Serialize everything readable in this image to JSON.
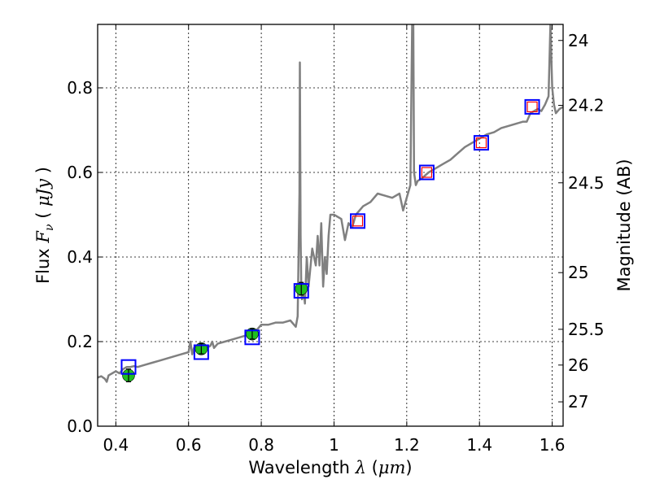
{
  "chart_data": {
    "type": "line",
    "xlabel": "Wavelength",
    "xlabel_symbol": "λ",
    "xlabel_unit_open": "(",
    "xlabel_unit": "μm",
    "xlabel_unit_close": ")",
    "ylabel_left_prefix": "Flux",
    "ylabel_left_symbol": "F",
    "ylabel_left_subscript": "ν",
    "ylabel_left_unit_open": "(",
    "ylabel_left_unit": "μJy",
    "ylabel_left_unit_close": ")",
    "ylabel_right": "Magnitude (AB)",
    "xlim": [
      0.35,
      1.63
    ],
    "ylim": [
      0.0,
      0.95
    ],
    "grid": true,
    "x_ticks": [
      0.4,
      0.6,
      0.8,
      1.0,
      1.2,
      1.4,
      1.6
    ],
    "x_tick_labels": [
      "0.4",
      "0.6",
      "0.8",
      "1",
      "1.2",
      "1.4",
      "1.6"
    ],
    "y_ticks": [
      0.0,
      0.2,
      0.4,
      0.6,
      0.8
    ],
    "y_tick_labels": [
      "0.0",
      "0.2",
      "0.4",
      "0.6",
      "0.8"
    ],
    "mag_ticks": [
      24,
      24.2,
      24.5,
      25,
      25.5,
      26,
      27
    ],
    "mag_tick_labels": [
      "24",
      "24.2",
      "24.5",
      "25",
      "25.5",
      "26",
      "27"
    ],
    "model_color": "#808080",
    "model_spectrum": {
      "x": [
        0.35,
        0.36,
        0.37,
        0.375,
        0.38,
        0.39,
        0.4,
        0.41,
        0.42,
        0.43,
        0.44,
        0.45,
        0.46,
        0.48,
        0.5,
        0.52,
        0.54,
        0.56,
        0.58,
        0.6,
        0.605,
        0.61,
        0.615,
        0.62,
        0.63,
        0.65,
        0.66,
        0.665,
        0.67,
        0.68,
        0.7,
        0.72,
        0.74,
        0.76,
        0.78,
        0.79,
        0.8,
        0.82,
        0.84,
        0.86,
        0.88,
        0.895,
        0.9,
        0.905,
        0.906,
        0.908,
        0.91,
        0.912,
        0.915,
        0.92,
        0.925,
        0.93,
        0.94,
        0.95,
        0.955,
        0.96,
        0.965,
        0.97,
        0.975,
        0.98,
        0.985,
        0.99,
        1.0,
        1.02,
        1.03,
        1.04,
        1.05,
        1.06,
        1.08,
        1.1,
        1.12,
        1.14,
        1.16,
        1.18,
        1.19,
        1.2,
        1.21,
        1.215,
        1.218,
        1.22,
        1.225,
        1.23,
        1.24,
        1.26,
        1.28,
        1.3,
        1.32,
        1.34,
        1.36,
        1.38,
        1.4,
        1.42,
        1.44,
        1.46,
        1.48,
        1.5,
        1.52,
        1.53,
        1.54,
        1.55,
        1.56,
        1.57,
        1.58,
        1.59,
        1.595,
        1.6,
        1.605,
        1.61,
        1.62,
        1.63
      ],
      "y": [
        0.115,
        0.118,
        0.112,
        0.105,
        0.12,
        0.125,
        0.13,
        0.125,
        0.135,
        0.14,
        0.14,
        0.142,
        0.14,
        0.145,
        0.15,
        0.155,
        0.16,
        0.165,
        0.17,
        0.175,
        0.2,
        0.17,
        0.185,
        0.18,
        0.182,
        0.185,
        0.19,
        0.2,
        0.185,
        0.195,
        0.2,
        0.205,
        0.21,
        0.215,
        0.22,
        0.23,
        0.24,
        0.24,
        0.245,
        0.245,
        0.25,
        0.235,
        0.26,
        0.55,
        0.86,
        0.45,
        0.32,
        0.3,
        0.33,
        0.29,
        0.4,
        0.33,
        0.42,
        0.38,
        0.45,
        0.38,
        0.48,
        0.33,
        0.4,
        0.36,
        0.45,
        0.5,
        0.5,
        0.49,
        0.44,
        0.48,
        0.47,
        0.5,
        0.52,
        0.53,
        0.55,
        0.545,
        0.54,
        0.55,
        0.51,
        0.54,
        0.57,
        0.95,
        0.95,
        0.6,
        0.57,
        0.58,
        0.585,
        0.6,
        0.61,
        0.62,
        0.63,
        0.645,
        0.66,
        0.67,
        0.68,
        0.69,
        0.695,
        0.705,
        0.71,
        0.715,
        0.72,
        0.72,
        0.74,
        0.745,
        0.75,
        0.745,
        0.76,
        0.78,
        0.95,
        0.8,
        0.76,
        0.74,
        0.75,
        0.755
      ]
    },
    "photometry_observed": {
      "marker": "circle",
      "color": "#1fbf1f",
      "x": [
        0.435,
        0.635,
        0.775,
        0.91
      ],
      "y": [
        0.12,
        0.183,
        0.218,
        0.325
      ],
      "yerr": [
        0.015,
        0.012,
        0.012,
        0.015
      ]
    },
    "photometry_model_blue": {
      "marker": "square",
      "color": "#0000ff",
      "x": [
        0.435,
        0.635,
        0.775,
        0.91,
        1.065,
        1.255,
        1.405,
        1.545
      ],
      "y": [
        0.14,
        0.175,
        0.21,
        0.32,
        0.485,
        0.6,
        0.67,
        0.755
      ]
    },
    "photometry_model_red": {
      "marker": "square",
      "color": "#ff0000",
      "x": [
        1.065,
        1.255,
        1.405,
        1.545
      ],
      "y": [
        0.485,
        0.6,
        0.67,
        0.755
      ]
    }
  }
}
